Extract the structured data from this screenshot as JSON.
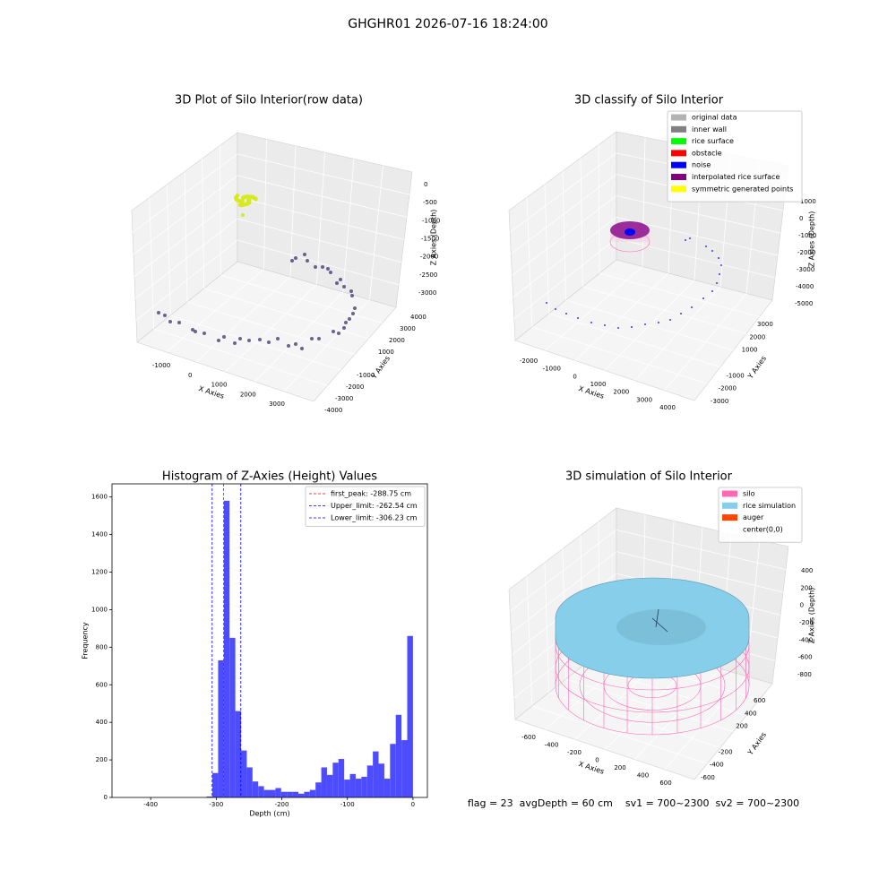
{
  "title": "GHGHR01 2026-07-16 18:24:00",
  "footer": "flag = 23  avgDepth = 60 cm    sv1 = 700~2300  sv2 = 700~2300",
  "chart_data": [
    {
      "type": "scatter3d",
      "title": "3D Plot of Silo Interior(row data)",
      "xlabel": "X Axies",
      "ylabel": "Y Axies",
      "zlabel": "Z Axies (Depth)",
      "xticks": [
        -1000,
        0,
        1000,
        2000,
        3000
      ],
      "yticks": [
        -4000,
        -3000,
        -2000,
        -1000,
        1000,
        2000,
        3000,
        4000
      ],
      "zticks": [
        0,
        -500,
        -1000,
        -1500,
        -2000,
        -2500,
        -3000
      ]
    },
    {
      "type": "scatter3d",
      "title": "3D classify of Silo Interior",
      "xlabel": "X Axies",
      "ylabel": "Y Axies",
      "zlabel": "Z Axies (Depth)",
      "xticks": [
        -2000,
        -1000,
        0,
        1000,
        2000,
        3000,
        4000
      ],
      "yticks": [
        -3000,
        -2000,
        -1000,
        1000,
        2000,
        3000
      ],
      "zticks": [
        1000,
        0,
        -1000,
        -2000,
        -3000,
        -4000,
        -5000
      ],
      "legend": [
        {
          "name": "original data",
          "color": "#b3b3b3"
        },
        {
          "name": "inner wall",
          "color": "#808080"
        },
        {
          "name": "rice surface",
          "color": "#00ff00"
        },
        {
          "name": "obstacle",
          "color": "#ff0000"
        },
        {
          "name": "noise",
          "color": "#0000ff"
        },
        {
          "name": "interpolated rice surface",
          "color": "#800080"
        },
        {
          "name": "symmetric generated points",
          "color": "#ffff00"
        }
      ]
    },
    {
      "type": "histogram",
      "title": "Histogram of Z-Axies (Height) Values",
      "xlabel": "Depth (cm)",
      "ylabel": "Frequency",
      "color": "#4d4dff",
      "bins": [
        -437,
        -428.26,
        -419.52,
        -410.78,
        -402.04,
        -393.3,
        -384.56,
        -375.82,
        -367.08,
        -358.34,
        -349.6,
        -340.86,
        -332.12,
        -323.38,
        -314.64,
        -305.9,
        -297.16,
        -288.42,
        -279.68,
        -270.94,
        -262.2,
        -253.46,
        -244.72,
        -235.98,
        -227.24,
        -218.5,
        -209.76,
        -201.02,
        -192.28,
        -183.54,
        -174.8,
        -166.06,
        -157.32,
        -148.58,
        -139.84,
        -131.1,
        -122.36,
        -113.62,
        -104.88,
        -96.14,
        -87.4,
        -78.66,
        -69.92,
        -61.18,
        -52.44,
        -43.7,
        -34.96,
        -26.22,
        -17.48,
        -8.74,
        0
      ],
      "values": [
        0,
        0,
        0,
        0,
        0,
        0,
        0,
        0,
        0,
        0,
        0,
        0,
        0,
        0,
        5,
        130,
        730,
        1580,
        850,
        460,
        250,
        160,
        85,
        60,
        40,
        40,
        50,
        30,
        30,
        30,
        20,
        30,
        40,
        80,
        160,
        120,
        185,
        205,
        95,
        125,
        100,
        110,
        170,
        245,
        180,
        100,
        285,
        440,
        305,
        860
      ],
      "xlim": [
        -459,
        22
      ],
      "ylim": [
        0,
        1670
      ],
      "xticks": [
        -400,
        -300,
        -200,
        -100,
        0
      ],
      "yticks": [
        0,
        200,
        400,
        600,
        800,
        1000,
        1200,
        1400,
        1600
      ],
      "vlines": [
        {
          "label": "first_peak: -288.75 cm",
          "value": -288.75,
          "color": "#ff0000"
        },
        {
          "label": "Upper_limit: -262.54 cm",
          "value": -262.54,
          "color": "#0000ff"
        },
        {
          "label": "Lower_limit: -306.23 cm",
          "value": -306.23,
          "color": "#0000ff"
        }
      ]
    },
    {
      "type": "surface3d",
      "title": "3D simulation of Silo Interior",
      "xlabel": "X Axies",
      "ylabel": "Y Axies",
      "zlabel": "Z Axies (Depth)",
      "xticks": [
        -600,
        -400,
        -200,
        0,
        200,
        400,
        600
      ],
      "yticks": [
        -600,
        -400,
        -200,
        200,
        400,
        600
      ],
      "zticks": [
        400,
        200,
        0,
        -200,
        -400,
        -600,
        -800
      ],
      "legend": [
        {
          "name": "silo",
          "color": "#ff69b4"
        },
        {
          "name": "rice simulation",
          "color": "#87ceeb"
        },
        {
          "name": "auger",
          "color": "#ff4500"
        },
        {
          "name": "center(0,0)",
          "color": "#ffffff"
        }
      ]
    }
  ]
}
